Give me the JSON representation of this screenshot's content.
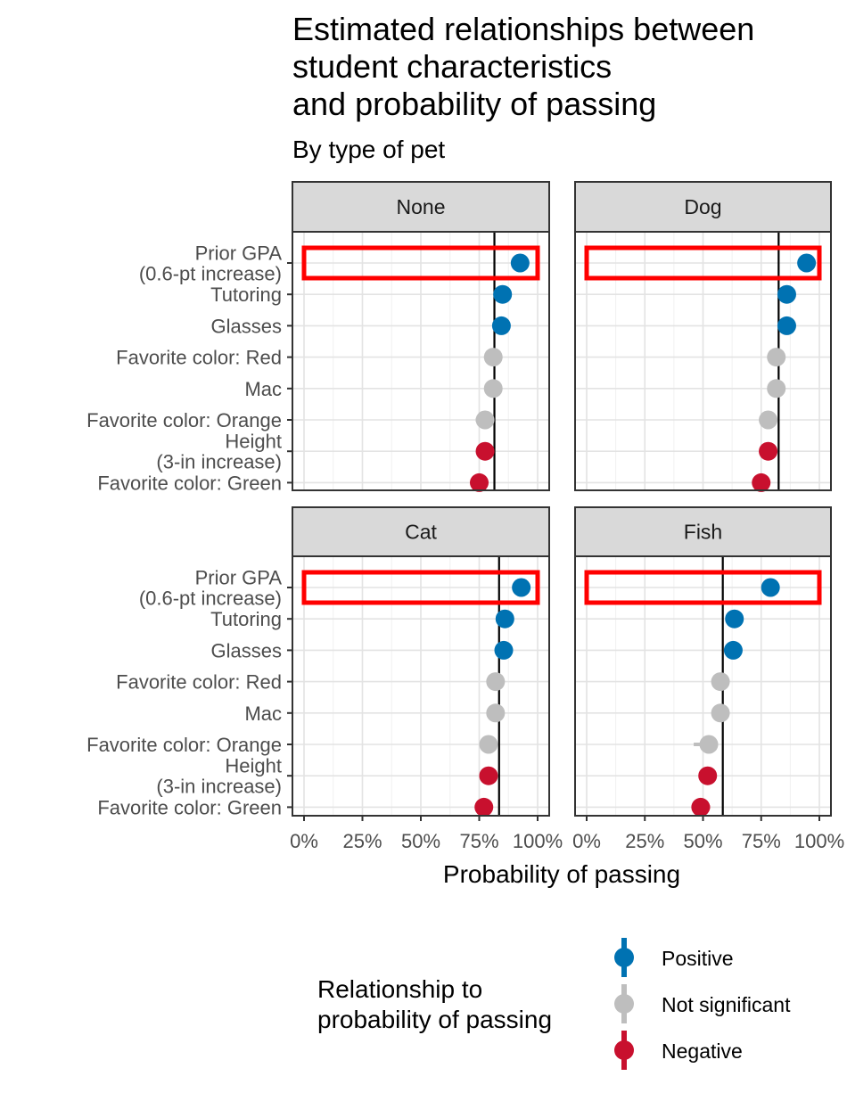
{
  "chart_data": {
    "type": "scatter",
    "title": "Estimated relationships between\nstudent characteristics\nand probability of passing",
    "subtitle": "By type of pet",
    "xlabel": "Probability of passing",
    "xlim": [
      0,
      100
    ],
    "x_ticks": [
      "0%",
      "25%",
      "50%",
      "75%",
      "100%"
    ],
    "x_tick_values": [
      0,
      25,
      50,
      75,
      100
    ],
    "grid": true,
    "legend_placement": "bottom",
    "legend_title": "Relationship to\nprobability of passing",
    "legend": [
      {
        "key": "Positive",
        "label": "Positive",
        "color": "#0072B2"
      },
      {
        "key": "Not significant",
        "label": "Not significant",
        "color": "#BEBEBE"
      },
      {
        "key": "Negative",
        "label": "Negative",
        "color": "#C8102E"
      }
    ],
    "highlight_color": "#FF0000",
    "highlight_category": "Prior GPA\n(0.6-pt increase)",
    "categories": [
      "Prior GPA\n(0.6-pt increase)",
      "Tutoring",
      "Glasses",
      "Favorite color: Red",
      "Mac",
      "Favorite color: Orange",
      "Height\n(3-in increase)",
      "Favorite color: Green"
    ],
    "panels": [
      {
        "name": "None",
        "baseline": 81.5,
        "points": [
          {
            "category": "Prior GPA\n(0.6-pt increase)",
            "value": 92.5,
            "low": 91,
            "high": 94,
            "relationship": "Positive"
          },
          {
            "category": "Tutoring",
            "value": 85,
            "low": 84,
            "high": 86,
            "relationship": "Positive"
          },
          {
            "category": "Glasses",
            "value": 84.5,
            "low": 83.5,
            "high": 85.5,
            "relationship": "Positive"
          },
          {
            "category": "Favorite color: Red",
            "value": 81,
            "low": 80,
            "high": 82,
            "relationship": "Not significant"
          },
          {
            "category": "Mac",
            "value": 81,
            "low": 80,
            "high": 82,
            "relationship": "Not significant"
          },
          {
            "category": "Favorite color: Orange",
            "value": 77.5,
            "low": 73.5,
            "high": 80,
            "relationship": "Not significant"
          },
          {
            "category": "Height\n(3-in increase)",
            "value": 77.5,
            "low": 76.5,
            "high": 78.5,
            "relationship": "Negative"
          },
          {
            "category": "Favorite color: Green",
            "value": 75,
            "low": 73.5,
            "high": 76.5,
            "relationship": "Negative"
          }
        ]
      },
      {
        "name": "Dog",
        "baseline": 82.5,
        "points": [
          {
            "category": "Prior GPA\n(0.6-pt increase)",
            "value": 94.5,
            "low": 93.5,
            "high": 95.5,
            "relationship": "Positive"
          },
          {
            "category": "Tutoring",
            "value": 86,
            "low": 85,
            "high": 87,
            "relationship": "Positive"
          },
          {
            "category": "Glasses",
            "value": 86,
            "low": 85,
            "high": 87,
            "relationship": "Positive"
          },
          {
            "category": "Favorite color: Red",
            "value": 81.5,
            "low": 80.5,
            "high": 82.5,
            "relationship": "Not significant"
          },
          {
            "category": "Mac",
            "value": 81.5,
            "low": 80.5,
            "high": 82.5,
            "relationship": "Not significant"
          },
          {
            "category": "Favorite color: Orange",
            "value": 78,
            "low": 74.5,
            "high": 80.5,
            "relationship": "Not significant"
          },
          {
            "category": "Height\n(3-in increase)",
            "value": 78,
            "low": 77,
            "high": 79,
            "relationship": "Negative"
          },
          {
            "category": "Favorite color: Green",
            "value": 75,
            "low": 73.5,
            "high": 76.5,
            "relationship": "Negative"
          }
        ]
      },
      {
        "name": "Cat",
        "baseline": 83.5,
        "points": [
          {
            "category": "Prior GPA\n(0.6-pt increase)",
            "value": 93,
            "low": 92,
            "high": 94,
            "relationship": "Positive"
          },
          {
            "category": "Tutoring",
            "value": 86,
            "low": 85,
            "high": 87,
            "relationship": "Positive"
          },
          {
            "category": "Glasses",
            "value": 85.5,
            "low": 84.5,
            "high": 86.5,
            "relationship": "Positive"
          },
          {
            "category": "Favorite color: Red",
            "value": 82,
            "low": 81,
            "high": 83,
            "relationship": "Not significant"
          },
          {
            "category": "Mac",
            "value": 82,
            "low": 81,
            "high": 83,
            "relationship": "Not significant"
          },
          {
            "category": "Favorite color: Orange",
            "value": 79,
            "low": 76.5,
            "high": 81,
            "relationship": "Not significant"
          },
          {
            "category": "Height\n(3-in increase)",
            "value": 79,
            "low": 78,
            "high": 80,
            "relationship": "Negative"
          },
          {
            "category": "Favorite color: Green",
            "value": 77,
            "low": 75.5,
            "high": 78.5,
            "relationship": "Negative"
          }
        ]
      },
      {
        "name": "Fish",
        "baseline": 58.5,
        "points": [
          {
            "category": "Prior GPA\n(0.6-pt increase)",
            "value": 79,
            "low": 77.5,
            "high": 80.5,
            "relationship": "Positive"
          },
          {
            "category": "Tutoring",
            "value": 63.5,
            "low": 62,
            "high": 65,
            "relationship": "Positive"
          },
          {
            "category": "Glasses",
            "value": 63,
            "low": 61.5,
            "high": 64.5,
            "relationship": "Positive"
          },
          {
            "category": "Favorite color: Red",
            "value": 57.5,
            "low": 56,
            "high": 59,
            "relationship": "Not significant"
          },
          {
            "category": "Mac",
            "value": 57.5,
            "low": 56,
            "high": 59,
            "relationship": "Not significant"
          },
          {
            "category": "Favorite color: Orange",
            "value": 52.5,
            "low": 46,
            "high": 56,
            "relationship": "Not significant"
          },
          {
            "category": "Height\n(3-in increase)",
            "value": 52,
            "low": 50.5,
            "high": 53.5,
            "relationship": "Negative"
          },
          {
            "category": "Favorite color: Green",
            "value": 49,
            "low": 45.5,
            "high": 53,
            "relationship": "Negative"
          }
        ]
      }
    ]
  }
}
